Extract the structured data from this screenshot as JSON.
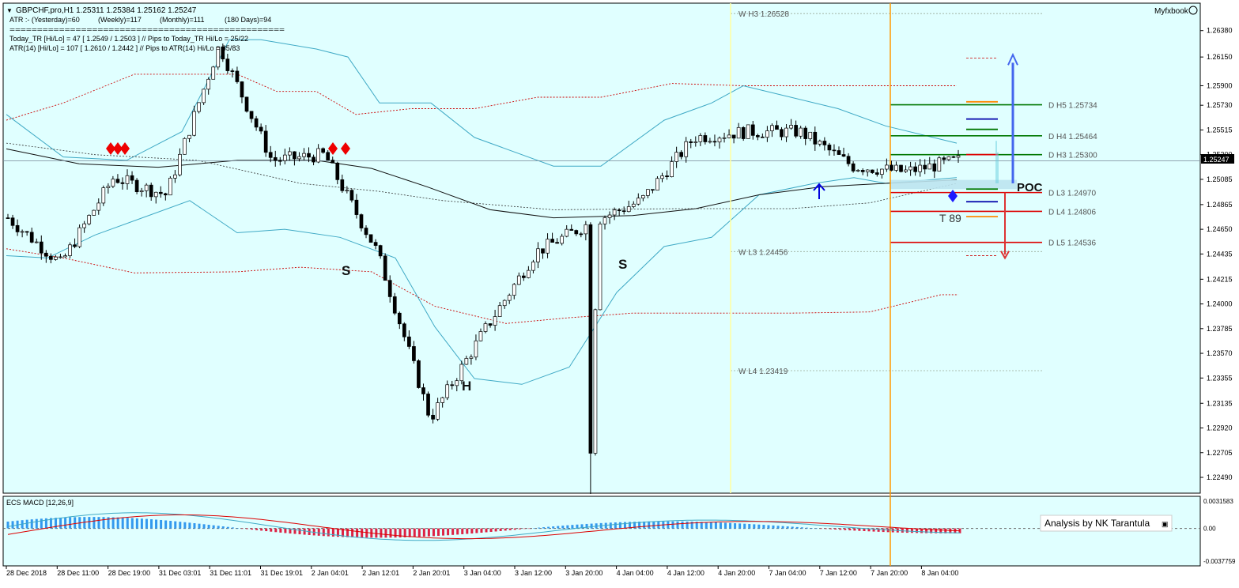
{
  "window": {
    "title": "GBPCHF,pro,H1  1.25311 1.25384 1.25162 1.25247",
    "brand": "Myfxbook"
  },
  "info": {
    "atr_line": [
      "ATR :- (Yesterday)=60",
      "(Weekly)=117",
      "(Monthly)=111",
      "(180 Days)=94"
    ],
    "separator": "==================================================",
    "today_tr": "Today_TR [Hi/Lo] = 47 [ 1.2549 / 1.2503 ]  // Pips to Today_TR Hi/Lo = 25/22",
    "atr14": "ATR(14)     [Hi/Lo] = 107 [ 1.2610 / 1.2442 ]  //  Pips to ATR(14) Hi/Lo       = 85/83"
  },
  "price_axis": {
    "ticks": [
      "1.26380",
      "1.26150",
      "1.25900",
      "1.25730",
      "1.25515",
      "1.25300",
      "1.25085",
      "1.24865",
      "1.24650",
      "1.24435",
      "1.24215",
      "1.24000",
      "1.23785",
      "1.23570",
      "1.23355",
      "1.23135",
      "1.22920",
      "1.22705",
      "1.22490"
    ],
    "current_price": "1.25247",
    "ylim": [
      1.2249,
      1.2644
    ]
  },
  "time_axis": [
    "28 Dec 2018",
    "28 Dec 11:00",
    "28 Dec 19:00",
    "31 Dec 03:01",
    "31 Dec 11:01",
    "31 Dec 19:01",
    "2 Jan 04:01",
    "2 Jan 12:01",
    "2 Jan 20:01",
    "3 Jan 04:00",
    "3 Jan 12:00",
    "3 Jan 20:00",
    "4 Jan 04:00",
    "4 Jan 12:00",
    "4 Jan 20:00",
    "7 Jan 04:00",
    "7 Jan 12:00",
    "7 Jan 20:00",
    "8 Jan 04:00"
  ],
  "levels": {
    "weekly": [
      {
        "label": "W  H3 1.26528",
        "price": 1.26528
      },
      {
        "label": "W  L3 1.24456",
        "price": 1.24456
      },
      {
        "label": "W  L4 1.23419",
        "price": 1.23419
      }
    ],
    "daily": [
      {
        "label": "D  H5 1.25734",
        "price": 1.25734,
        "color": "#007700"
      },
      {
        "label": "D  H4 1.25464",
        "price": 1.25464,
        "color": "#007700"
      },
      {
        "label": "D  H3 1.25300",
        "price": 1.253,
        "color": "#007700"
      },
      {
        "label": "D  L3 1.24970",
        "price": 1.2497,
        "color": "#dd0000"
      },
      {
        "label": "D  L4 1.24806",
        "price": 1.24806,
        "color": "#dd0000"
      },
      {
        "label": "D  L5 1.24536",
        "price": 1.24536,
        "color": "#dd0000"
      }
    ]
  },
  "annotations": {
    "s1": "S",
    "s2": "S",
    "h": "H",
    "poc": "POC",
    "t89": "T 89"
  },
  "macd": {
    "title": "ECS MACD [12,26,9]",
    "ticks": [
      "0.0031583",
      "0.00",
      "-0.0037759"
    ],
    "ylim": [
      -0.0037759,
      0.0031583
    ],
    "analysis_label": "Analysis by NK Tarantula"
  },
  "chart_data": {
    "type": "candlestick",
    "symbol": "GBPCHF,pro",
    "timeframe": "H1",
    "ohlc": {
      "open": 1.25311,
      "high": 1.25384,
      "low": 1.25162,
      "close": 1.25247
    },
    "close_path": [
      {
        "time": "28 Dec 2018",
        "price": 1.2475
      },
      {
        "time": "28 Dec 11:00",
        "price": 1.2435
      },
      {
        "time": "28 Dec 19:00",
        "price": 1.251
      },
      {
        "time": "31 Dec 03:01",
        "price": 1.2495
      },
      {
        "time": "31 Dec 11:01",
        "price": 1.2625
      },
      {
        "time": "31 Dec 19:01",
        "price": 1.2525
      },
      {
        "time": "2 Jan 04:01",
        "price": 1.253
      },
      {
        "time": "2 Jan 12:01",
        "price": 1.2445
      },
      {
        "time": "2 Jan 20:01",
        "price": 1.23
      },
      {
        "time": "3 Jan 04:00",
        "price": 1.2375
      },
      {
        "time": "3 Jan 12:00",
        "price": 1.2445
      },
      {
        "time": "3 Jan 20:00",
        "price": 1.247
      },
      {
        "time": "4 Jan 04:00",
        "price": 1.249
      },
      {
        "time": "4 Jan 12:00",
        "price": 1.2545
      },
      {
        "time": "4 Jan 20:00",
        "price": 1.255
      },
      {
        "time": "7 Jan 04:00",
        "price": 1.255
      },
      {
        "time": "7 Jan 12:00",
        "price": 1.252
      },
      {
        "time": "7 Jan 20:00",
        "price": 1.2515
      },
      {
        "time": "8 Jan 04:00",
        "price": 1.2525
      }
    ],
    "colors": {
      "background": "#e0ffff",
      "bull": "#ffffff",
      "bear": "#000000",
      "band": "#3fa9c5",
      "level_dotted": "#cc0000",
      "vline": "#ff9900"
    }
  }
}
